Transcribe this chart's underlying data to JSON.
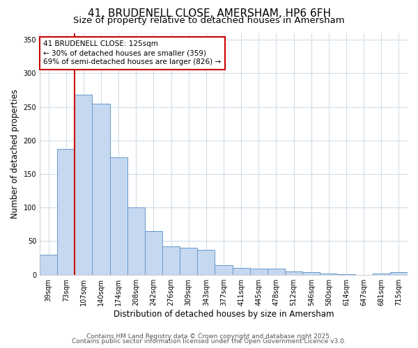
{
  "title": "41, BRUDENELL CLOSE, AMERSHAM, HP6 6FH",
  "subtitle": "Size of property relative to detached houses in Amersham",
  "xlabel": "Distribution of detached houses by size in Amersham",
  "ylabel": "Number of detached properties",
  "categories": [
    "39sqm",
    "73sqm",
    "107sqm",
    "140sqm",
    "174sqm",
    "208sqm",
    "242sqm",
    "276sqm",
    "309sqm",
    "343sqm",
    "377sqm",
    "411sqm",
    "445sqm",
    "478sqm",
    "512sqm",
    "546sqm",
    "580sqm",
    "614sqm",
    "647sqm",
    "681sqm",
    "715sqm"
  ],
  "values": [
    30,
    187,
    268,
    255,
    175,
    100,
    65,
    42,
    40,
    37,
    14,
    10,
    9,
    9,
    5,
    4,
    2,
    1,
    0,
    2,
    4
  ],
  "bar_color": "#c5d8f0",
  "bar_edge_color": "#6699cc",
  "vline_x": 2,
  "vline_color": "#cc0000",
  "annotation_line1": "41 BRUDENELL CLOSE: 125sqm",
  "annotation_line2": "← 30% of detached houses are smaller (359)",
  "annotation_line3": "69% of semi-detached houses are larger (826) →",
  "annotation_box_color": "#ffffff",
  "annotation_box_edge": "#cc0000",
  "ylim": [
    0,
    360
  ],
  "yticks": [
    0,
    50,
    100,
    150,
    200,
    250,
    300,
    350
  ],
  "footer_line1": "Contains HM Land Registry data © Crown copyright and database right 2025.",
  "footer_line2": "Contains public sector information licensed under the Open Government Licence v3.0.",
  "bg_color": "#ffffff",
  "plot_bg_color": "#ffffff",
  "grid_color": "#d0dce8",
  "title_fontsize": 11,
  "subtitle_fontsize": 9.5,
  "tick_fontsize": 7,
  "axis_label_fontsize": 8.5,
  "annot_fontsize": 7.5,
  "footer_fontsize": 6.5
}
